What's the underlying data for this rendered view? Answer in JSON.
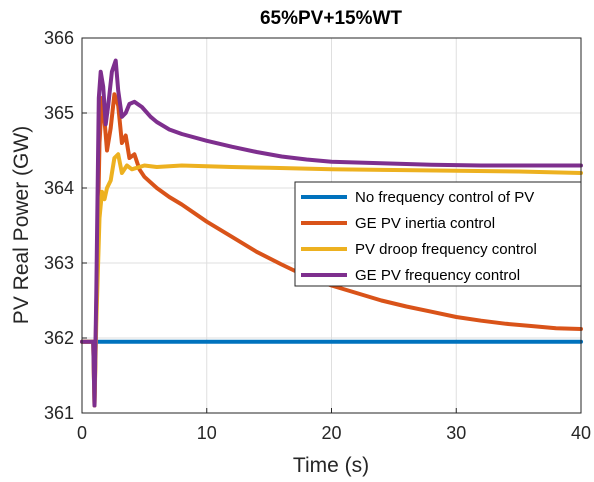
{
  "chart_data": {
    "type": "line",
    "title": "65%PV+15%WT",
    "xlabel": "Time (s)",
    "ylabel": "PV Real Power (GW)",
    "xlim": [
      0,
      40
    ],
    "ylim": [
      361,
      366
    ],
    "xticks": [
      0,
      10,
      20,
      30,
      40
    ],
    "yticks": [
      361,
      362,
      363,
      364,
      365,
      366
    ],
    "grid": true,
    "legend_position": "right",
    "series": [
      {
        "name": "No frequency control of PV",
        "color": "#0072BD",
        "points": [
          [
            0,
            361.95
          ],
          [
            1,
            361.95
          ],
          [
            5,
            361.95
          ],
          [
            10,
            361.95
          ],
          [
            20,
            361.95
          ],
          [
            30,
            361.95
          ],
          [
            40,
            361.95
          ]
        ]
      },
      {
        "name": "GE PV inertia control",
        "color": "#D95319",
        "points": [
          [
            0,
            361.95
          ],
          [
            0.9,
            361.95
          ],
          [
            1.0,
            361.1
          ],
          [
            1.15,
            362.4
          ],
          [
            1.4,
            364.6
          ],
          [
            1.6,
            365.2
          ],
          [
            1.8,
            364.9
          ],
          [
            2.0,
            364.5
          ],
          [
            2.3,
            364.8
          ],
          [
            2.6,
            365.25
          ],
          [
            2.9,
            365.1
          ],
          [
            3.2,
            364.6
          ],
          [
            3.5,
            364.7
          ],
          [
            3.8,
            364.4
          ],
          [
            4.2,
            364.45
          ],
          [
            4.6,
            364.25
          ],
          [
            5.0,
            364.15
          ],
          [
            6,
            364.0
          ],
          [
            7,
            363.88
          ],
          [
            8,
            363.78
          ],
          [
            10,
            363.55
          ],
          [
            12,
            363.35
          ],
          [
            14,
            363.15
          ],
          [
            16,
            362.98
          ],
          [
            18,
            362.82
          ],
          [
            20,
            362.7
          ],
          [
            22,
            362.6
          ],
          [
            24,
            362.5
          ],
          [
            26,
            362.42
          ],
          [
            28,
            362.35
          ],
          [
            30,
            362.28
          ],
          [
            32,
            362.23
          ],
          [
            34,
            362.19
          ],
          [
            36,
            362.16
          ],
          [
            38,
            362.13
          ],
          [
            40,
            362.12
          ]
        ]
      },
      {
        "name": "PV droop frequency control",
        "color": "#EDB120",
        "points": [
          [
            0,
            361.95
          ],
          [
            0.9,
            361.95
          ],
          [
            1.0,
            361.1
          ],
          [
            1.15,
            362.2
          ],
          [
            1.4,
            363.6
          ],
          [
            1.6,
            363.95
          ],
          [
            1.8,
            363.85
          ],
          [
            2.0,
            364.0
          ],
          [
            2.3,
            364.1
          ],
          [
            2.6,
            364.4
          ],
          [
            2.9,
            364.45
          ],
          [
            3.2,
            364.2
          ],
          [
            3.6,
            364.3
          ],
          [
            4.0,
            364.25
          ],
          [
            5,
            364.3
          ],
          [
            6,
            364.28
          ],
          [
            8,
            364.3
          ],
          [
            10,
            364.29
          ],
          [
            12,
            364.28
          ],
          [
            15,
            364.27
          ],
          [
            20,
            364.25
          ],
          [
            25,
            364.24
          ],
          [
            30,
            364.23
          ],
          [
            35,
            364.22
          ],
          [
            40,
            364.2
          ]
        ]
      },
      {
        "name": "GE PV frequency control",
        "color": "#7E2F8E",
        "points": [
          [
            0,
            361.95
          ],
          [
            0.9,
            361.95
          ],
          [
            1.0,
            361.1
          ],
          [
            1.15,
            362.6
          ],
          [
            1.35,
            365.2
          ],
          [
            1.5,
            365.55
          ],
          [
            1.7,
            365.35
          ],
          [
            1.9,
            364.85
          ],
          [
            2.1,
            365.1
          ],
          [
            2.4,
            365.55
          ],
          [
            2.7,
            365.7
          ],
          [
            2.9,
            365.3
          ],
          [
            3.2,
            364.95
          ],
          [
            3.5,
            365.0
          ],
          [
            3.8,
            365.12
          ],
          [
            4.2,
            365.15
          ],
          [
            4.8,
            365.08
          ],
          [
            5.5,
            364.95
          ],
          [
            6,
            364.88
          ],
          [
            7,
            364.78
          ],
          [
            8,
            364.72
          ],
          [
            10,
            364.63
          ],
          [
            12,
            364.55
          ],
          [
            14,
            364.48
          ],
          [
            16,
            364.42
          ],
          [
            18,
            364.38
          ],
          [
            20,
            364.35
          ],
          [
            24,
            364.33
          ],
          [
            28,
            364.31
          ],
          [
            32,
            364.3
          ],
          [
            36,
            364.3
          ],
          [
            40,
            364.3
          ]
        ]
      }
    ]
  }
}
